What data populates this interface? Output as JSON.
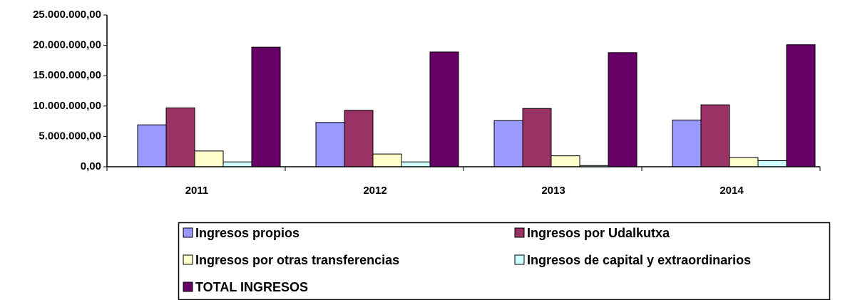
{
  "chart_data": {
    "type": "bar",
    "categories": [
      "2011",
      "2012",
      "2013",
      "2014"
    ],
    "series": [
      {
        "name": "Ingresos propios",
        "color": "#9999ff",
        "values": [
          6900000,
          7300000,
          7600000,
          7700000
        ]
      },
      {
        "name": "Ingresos por Udalkutxa",
        "color": "#993366",
        "values": [
          9700000,
          9300000,
          9600000,
          10200000
        ]
      },
      {
        "name": "Ingresos por otras transferencias",
        "color": "#ffffcc",
        "values": [
          2600000,
          2100000,
          1800000,
          1500000
        ]
      },
      {
        "name": "Ingresos de capital y extraordinarios",
        "color": "#ccffff",
        "values": [
          800000,
          800000,
          200000,
          1000000
        ]
      },
      {
        "name": "TOTAL INGRESOS",
        "color": "#660066",
        "values": [
          19700000,
          18900000,
          18800000,
          20100000
        ]
      }
    ],
    "ylim": [
      0,
      25000000
    ],
    "yticks": [
      {
        "value": 0,
        "label": "0,00"
      },
      {
        "value": 5000000,
        "label": "5.000.000,00"
      },
      {
        "value": 10000000,
        "label": "10.000.000,00"
      },
      {
        "value": 15000000,
        "label": "15.000.000,00"
      },
      {
        "value": 20000000,
        "label": "20.000.000,00"
      },
      {
        "value": 25000000,
        "label": "25.000.000,00"
      }
    ],
    "grid": false
  }
}
